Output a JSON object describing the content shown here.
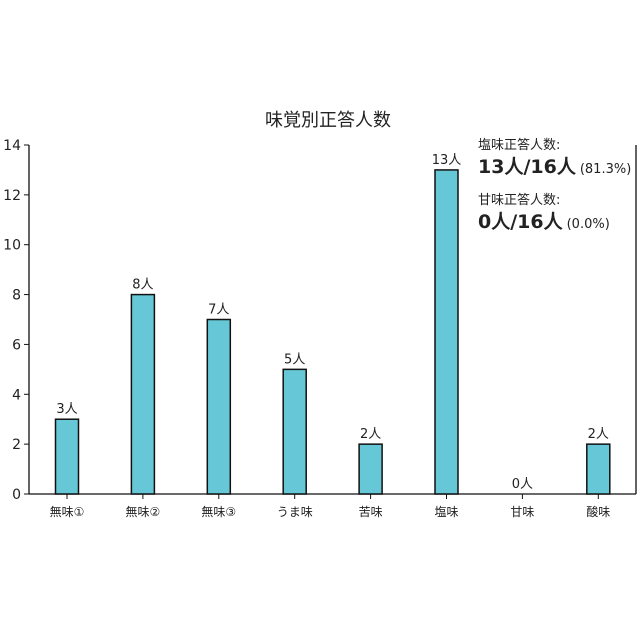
{
  "chart_data": {
    "type": "bar",
    "title": "味覚別正答人数",
    "categories": [
      "無味①",
      "無味②",
      "無味③",
      "うま味",
      "苦味",
      "塩味",
      "甘味",
      "酸味"
    ],
    "values": [
      3,
      8,
      7,
      5,
      2,
      13,
      0,
      2
    ],
    "data_labels": [
      "3人",
      "8人",
      "7人",
      "5人",
      "2人",
      "13人",
      "0人",
      "2人"
    ],
    "yticks": [
      "0",
      "2",
      "4",
      "6",
      "8",
      "10",
      "12",
      "14"
    ],
    "ylim": [
      0,
      14
    ],
    "xlabel": "",
    "ylabel": "",
    "grid": false,
    "bar_color": "#66c8d6",
    "bar_edge_color": "#111111"
  },
  "annotations": [
    {
      "heading": "塩味正答人数:",
      "main": "13人/16人",
      "pct": "(81.3%)"
    },
    {
      "heading": "甘味正答人数:",
      "main": "0人/16人",
      "pct": "(0.0%)"
    }
  ]
}
